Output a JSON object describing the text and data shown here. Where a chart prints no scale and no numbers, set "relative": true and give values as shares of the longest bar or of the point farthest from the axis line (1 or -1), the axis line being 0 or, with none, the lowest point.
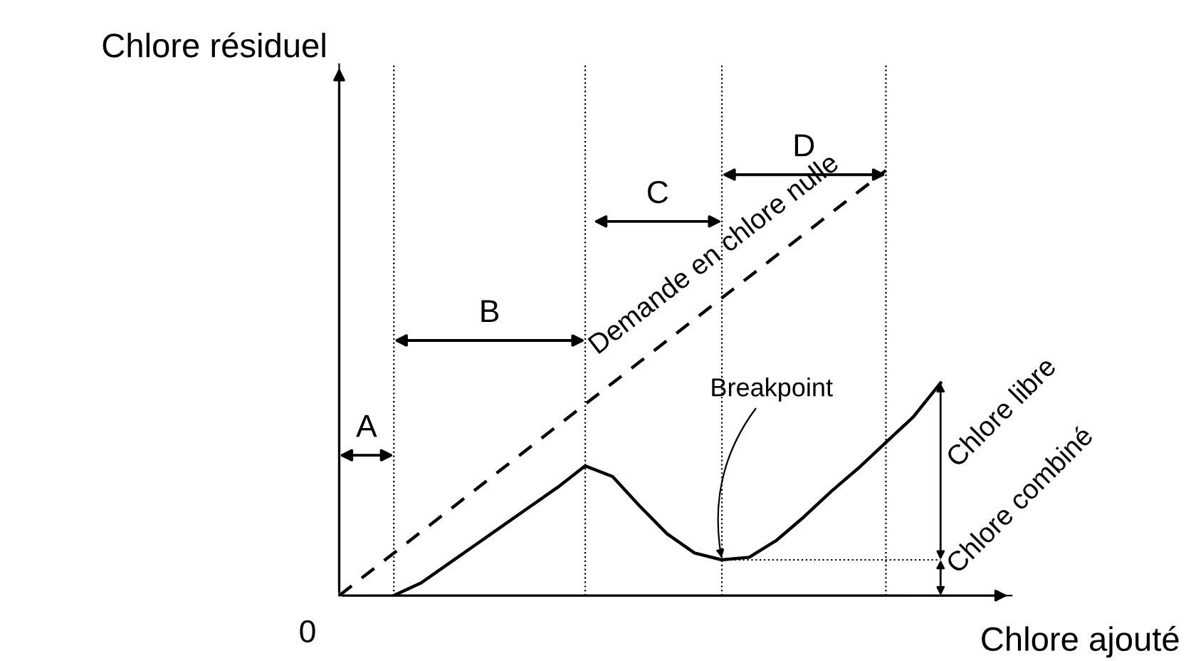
{
  "chart_data": {
    "type": "line",
    "relative": true,
    "xlabel": "Chlore ajouté",
    "ylabel": "Chlore résiduel",
    "legend": false,
    "marker": "none",
    "grid": "x",
    "categories": [
      null,
      null,
      null,
      null,
      null,
      null,
      null,
      null,
      null,
      null,
      null,
      null,
      null,
      null,
      null,
      null,
      null,
      null,
      null,
      null,
      null,
      null,
      null,
      null,
      null
    ],
    "series": [
      {
        "name": "Demande en chlore nulle",
        "color": "#000000",
        "line_style": "dashed",
        "values": [
          0,
          0.05,
          0.1,
          0.15,
          0.2,
          0.25,
          0.3,
          0.35,
          0.4,
          0.45,
          0.5,
          0.55,
          0.6,
          0.65,
          0.7,
          0.75,
          0.8,
          0.85,
          0.9,
          0.95,
          1,
          null,
          null,
          null,
          null
        ]
      },
      {
        "color": "#000000",
        "line_style": "solid",
        "values": [
          null,
          null,
          0,
          0.03,
          0.075,
          0.12,
          0.165,
          0.21,
          0.255,
          0.305,
          0.28,
          0.21,
          0.145,
          0.1,
          0.084,
          0.09,
          0.13,
          0.185,
          0.245,
          0.3,
          0.36,
          0.42,
          0.5,
          null,
          null
        ]
      }
    ],
    "annotations": [
      "A",
      "B",
      "C",
      "D",
      "Breakpoint",
      "0",
      "Chlore combiné",
      "Chlore libre"
    ]
  }
}
